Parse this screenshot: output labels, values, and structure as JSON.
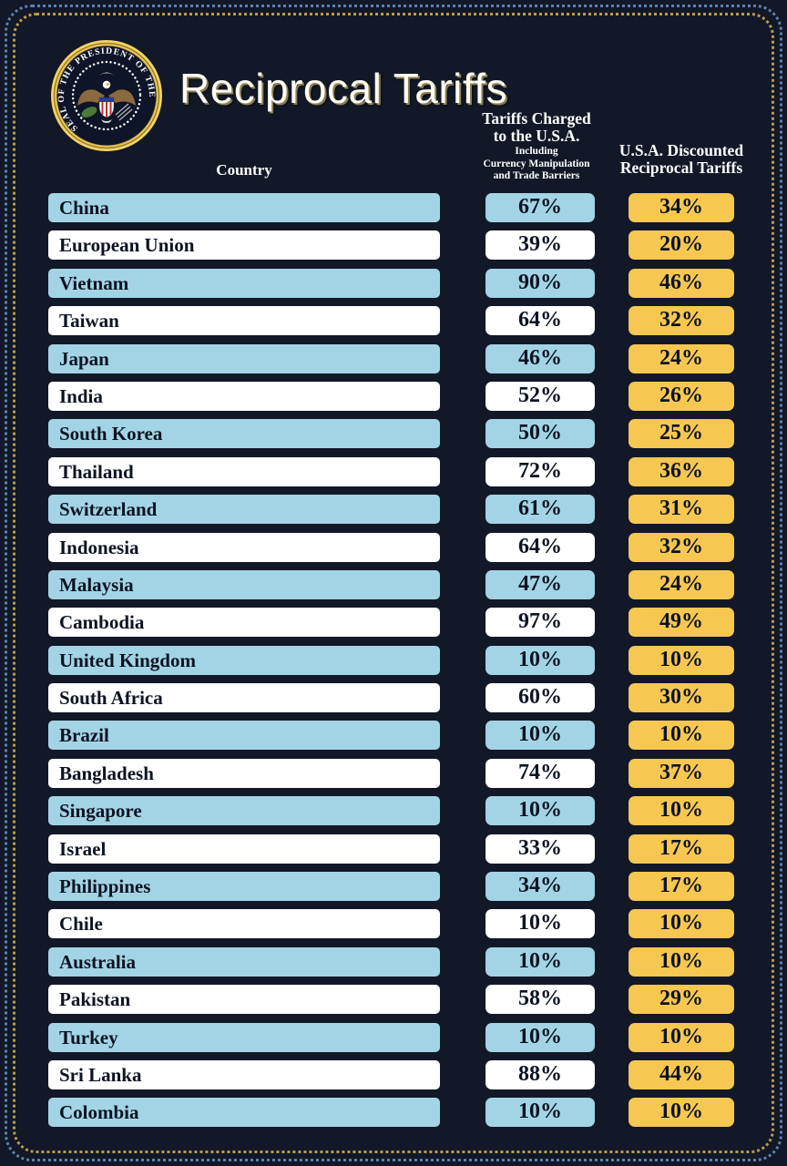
{
  "page": {
    "title": "Reciprocal Tariffs",
    "seal_text": "SEAL OF THE PRESIDENT OF THE UNITED STATES",
    "country_header": "Country",
    "charged_header_line1": "Tariffs Charged",
    "charged_header_line2": "to the U.S.A.",
    "charged_sub_line1": "Including",
    "charged_sub_line2": "Currency Manipulation",
    "charged_sub_line3": "and Trade Barriers",
    "discounted_header_line1": "U.S.A. Discounted",
    "discounted_header_line2": "Reciprocal Tariffs"
  },
  "colors": {
    "background": "#121827",
    "row_blue": "#a3d4e5",
    "row_white": "#ffffff",
    "discount_gold": "#f6c751",
    "frame_outer_blue": "#5d82ad",
    "frame_inner_gold": "#bb9a4e",
    "header_text": "#ffffff",
    "row_text": "#0c1322",
    "title_text": "#fdfbf2"
  },
  "chart_data": {
    "type": "table",
    "title": "Reciprocal Tariffs",
    "columns": [
      "Country",
      "Tariffs Charged to the U.S.A. Including Currency Manipulation and Trade Barriers",
      "U.S.A. Discounted Reciprocal Tariffs"
    ],
    "rows": [
      {
        "country": "China",
        "charged": "67%",
        "discounted": "34%"
      },
      {
        "country": "European Union",
        "charged": "39%",
        "discounted": "20%"
      },
      {
        "country": "Vietnam",
        "charged": "90%",
        "discounted": "46%"
      },
      {
        "country": "Taiwan",
        "charged": "64%",
        "discounted": "32%"
      },
      {
        "country": "Japan",
        "charged": "46%",
        "discounted": "24%"
      },
      {
        "country": "India",
        "charged": "52%",
        "discounted": "26%"
      },
      {
        "country": "South Korea",
        "charged": "50%",
        "discounted": "25%"
      },
      {
        "country": "Thailand",
        "charged": "72%",
        "discounted": "36%"
      },
      {
        "country": "Switzerland",
        "charged": "61%",
        "discounted": "31%"
      },
      {
        "country": "Indonesia",
        "charged": "64%",
        "discounted": "32%"
      },
      {
        "country": "Malaysia",
        "charged": "47%",
        "discounted": "24%"
      },
      {
        "country": "Cambodia",
        "charged": "97%",
        "discounted": "49%"
      },
      {
        "country": "United Kingdom",
        "charged": "10%",
        "discounted": "10%"
      },
      {
        "country": "South Africa",
        "charged": "60%",
        "discounted": "30%"
      },
      {
        "country": "Brazil",
        "charged": "10%",
        "discounted": "10%"
      },
      {
        "country": "Bangladesh",
        "charged": "74%",
        "discounted": "37%"
      },
      {
        "country": "Singapore",
        "charged": "10%",
        "discounted": "10%"
      },
      {
        "country": "Israel",
        "charged": "33%",
        "discounted": "17%"
      },
      {
        "country": "Philippines",
        "charged": "34%",
        "discounted": "17%"
      },
      {
        "country": "Chile",
        "charged": "10%",
        "discounted": "10%"
      },
      {
        "country": "Australia",
        "charged": "10%",
        "discounted": "10%"
      },
      {
        "country": "Pakistan",
        "charged": "58%",
        "discounted": "29%"
      },
      {
        "country": "Turkey",
        "charged": "10%",
        "discounted": "10%"
      },
      {
        "country": "Sri Lanka",
        "charged": "88%",
        "discounted": "44%"
      },
      {
        "country": "Colombia",
        "charged": "10%",
        "discounted": "10%"
      }
    ]
  }
}
